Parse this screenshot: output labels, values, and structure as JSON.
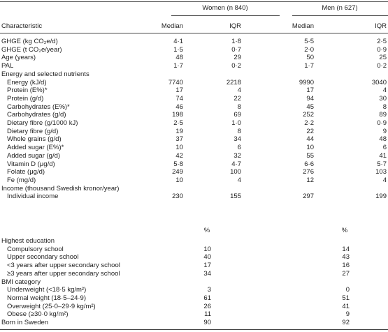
{
  "header": {
    "groups": [
      "Women (n 840)",
      "Men (n 627)"
    ],
    "characteristic": "Characteristic",
    "subheaders": [
      "Median",
      "IQR",
      "Median",
      "IQR"
    ]
  },
  "part1": [
    {
      "label": "GHGE (kg CO₂e/d)",
      "values": [
        "4·1",
        "1·8",
        "5·5",
        "2·5"
      ]
    },
    {
      "label": "GHGE (t CO₂e/year)",
      "values": [
        "1·5",
        "0·7",
        "2·0",
        "0·9"
      ]
    },
    {
      "label": "Age (years)",
      "values": [
        "48",
        "29",
        "50",
        "25"
      ]
    },
    {
      "label": "PAL",
      "values": [
        "1·7",
        "0·2",
        "1·7",
        "0·2"
      ]
    },
    {
      "section": "Energy and selected nutrients",
      "rows": [
        {
          "label": "Energy (kJ/d)",
          "values": [
            "7740",
            "2218",
            "9990",
            "3040"
          ]
        },
        {
          "label": "Protein (E%)*",
          "values": [
            "17",
            "4",
            "17",
            "4"
          ]
        },
        {
          "label": "Protein (g/d)",
          "values": [
            "74",
            "22",
            "94",
            "30"
          ]
        },
        {
          "label": "Carbohydrates (E%)*",
          "values": [
            "46",
            "8",
            "45",
            "8"
          ]
        },
        {
          "label": "Carbohydrates (g/d)",
          "values": [
            "198",
            "69",
            "252",
            "89"
          ]
        },
        {
          "label": "Dietary fibre (g/1000 kJ)",
          "values": [
            "2·5",
            "1·0",
            "2·2",
            "0·9"
          ]
        },
        {
          "label": "Dietary fibre (g/d)",
          "values": [
            "19",
            "8",
            "22",
            "9"
          ]
        },
        {
          "label": "Whole grains (g/d)",
          "values": [
            "37",
            "34",
            "44",
            "48"
          ]
        },
        {
          "label": "Added sugar (E%)*",
          "values": [
            "10",
            "6",
            "10",
            "6"
          ]
        },
        {
          "label": "Added sugar (g/d)",
          "values": [
            "42",
            "32",
            "55",
            "41"
          ]
        },
        {
          "label": "Vitamin D (μg/d)",
          "values": [
            "5·8",
            "4·7",
            "6·6",
            "5·7"
          ]
        },
        {
          "label": "Folate (μg/d)",
          "values": [
            "249",
            "100",
            "276",
            "103"
          ]
        },
        {
          "label": "Fe (mg/d)",
          "values": [
            "10",
            "4",
            "12",
            "4"
          ]
        }
      ]
    },
    {
      "section": "Income (thousand Swedish kronor/year)",
      "rows": [
        {
          "label": "Individual income",
          "values": [
            "230",
            "155",
            "297",
            "199"
          ]
        }
      ]
    }
  ],
  "percent_header": [
    "%",
    "%"
  ],
  "part2": [
    {
      "section": "Highest education",
      "rows": [
        {
          "label": "Compulsory school",
          "values": [
            "10",
            "14"
          ]
        },
        {
          "label": "Upper secondary school",
          "values": [
            "40",
            "43"
          ]
        },
        {
          "label": "<3 years after upper secondary school",
          "values": [
            "17",
            "16"
          ]
        },
        {
          "label": "≥3 years after upper secondary school",
          "values": [
            "34",
            "27"
          ]
        }
      ]
    },
    {
      "section": "BMI category",
      "rows": [
        {
          "label": "Underweight (<18·5 kg/m²)",
          "values": [
            "3",
            "0"
          ]
        },
        {
          "label": "Normal weight (18·5–24·9)",
          "values": [
            "61",
            "51"
          ]
        },
        {
          "label": "Overweight (25·0–29·9 kg/m²)",
          "values": [
            "26",
            "41"
          ]
        },
        {
          "label": "Obese (≥30·0 kg/m²)",
          "values": [
            "11",
            "9"
          ]
        }
      ]
    },
    {
      "label": "Born in Sweden",
      "values": [
        "90",
        "92"
      ]
    }
  ]
}
